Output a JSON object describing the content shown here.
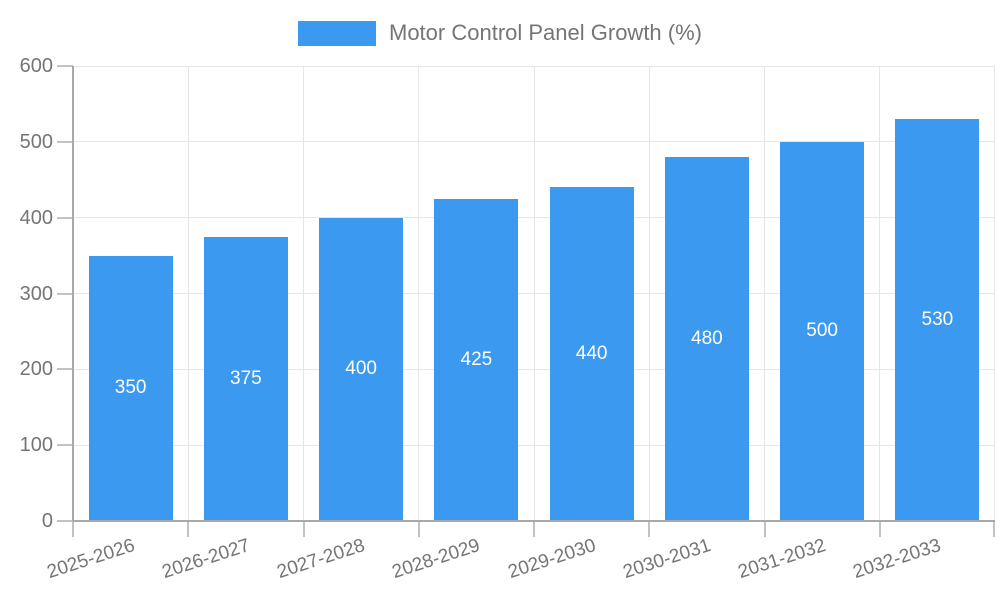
{
  "chart_data": {
    "type": "bar",
    "title": "Motor Control Panel Growth (%)",
    "categories": [
      "2025-2026",
      "2026-2027",
      "2027-2028",
      "2028-2029",
      "2029-2030",
      "2030-2031",
      "2031-2032",
      "2032-2033"
    ],
    "series": [
      {
        "name": "Motor Control Panel Growth (%)",
        "values": [
          350,
          375,
          400,
          425,
          440,
          480,
          500,
          530
        ]
      }
    ],
    "xlabel": "",
    "ylabel": "",
    "ylim": [
      0,
      600
    ],
    "yticks": [
      0,
      100,
      200,
      300,
      400,
      500,
      600
    ],
    "grid": true,
    "legend_position": "top",
    "bar_labels_inside": true,
    "colors": {
      "bar": "#3B99F0",
      "bar_label": "#FFFFFF",
      "legend_text": "#757575",
      "tick_text": "#757575",
      "grid_line": "#E6E6E6",
      "axis_line": "#A8A8A8",
      "tick_mark": "#C2C2C2",
      "background": "#FFFFFF"
    }
  }
}
